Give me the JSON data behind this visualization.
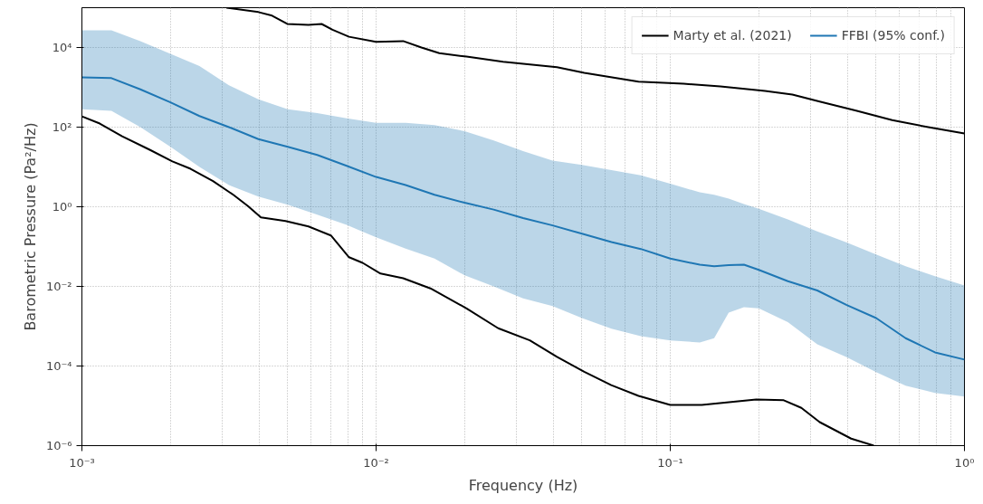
{
  "chart_data": {
    "type": "line",
    "xlabel": "Frequency (Hz)",
    "ylabel": "Barometric Pressure (Pa²/Hz)",
    "log": "xy",
    "grid": true,
    "legend": "top right",
    "line_style": "solid",
    "marker": "none",
    "xlim": [
      0.001,
      1
    ],
    "ylim": [
      1e-06,
      100000
    ],
    "xticks": [
      {
        "value": 0.001,
        "label": "10⁻³"
      },
      {
        "value": 0.01,
        "label": "10⁻²"
      },
      {
        "value": 0.1,
        "label": "10⁻¹"
      },
      {
        "value": 1,
        "label": "10⁰"
      }
    ],
    "yticks": [
      {
        "value": 1e-06,
        "label": "10⁻⁶"
      },
      {
        "value": 0.0001,
        "label": "10⁻⁴"
      },
      {
        "value": 0.01,
        "label": "10⁻²"
      },
      {
        "value": 1,
        "label": "10⁰"
      },
      {
        "value": 100,
        "label": "10²"
      },
      {
        "value": 10000,
        "label": "10⁴"
      }
    ],
    "series": [
      {
        "name": "Marty et al. (2021)",
        "color": "#000000",
        "x": [
          0.0031,
          0.00398,
          0.00443,
          0.00499,
          0.00589,
          0.00653,
          0.00711,
          0.00809,
          0.01,
          0.01236,
          0.01426,
          0.0164,
          0.0203,
          0.027,
          0.0412,
          0.051,
          0.078,
          0.111,
          0.148,
          0.21,
          0.26,
          0.322,
          0.428,
          0.568,
          0.753,
          1
        ],
        "values": [
          100000,
          77600,
          63000,
          39000,
          37000,
          39000,
          28000,
          18600,
          13800,
          14500,
          10000,
          7200,
          5900,
          4400,
          3200,
          2300,
          1380,
          1230,
          1050,
          810,
          660,
          440,
          260,
          150,
          100,
          69
        ]
      },
      {
        "color": "#000000",
        "x": [
          0.001,
          0.00115,
          0.00137,
          0.0017,
          0.00203,
          0.00234,
          0.00279,
          0.00327,
          0.00366,
          0.00406,
          0.00492,
          0.00589,
          0.00702,
          0.00809,
          0.009,
          0.01035,
          0.01236,
          0.0153,
          0.0203,
          0.026,
          0.0333,
          0.0412,
          0.051,
          0.063,
          0.078,
          0.1,
          0.128,
          0.196,
          0.243,
          0.279,
          0.322,
          0.412,
          0.492
        ],
        "values": [
          186,
          123,
          59,
          27,
          13.8,
          9.0,
          4.4,
          2.0,
          1.05,
          0.54,
          0.44,
          0.32,
          0.19,
          0.054,
          0.039,
          0.021,
          0.016,
          0.0089,
          0.0028,
          0.00089,
          0.00044,
          0.00017,
          7.2e-05,
          3.3e-05,
          1.78e-05,
          1.05e-05,
          1.05e-05,
          1.45e-05,
          1.38e-05,
          8.9e-06,
          3.9e-06,
          1.5e-06,
          1e-06
        ]
      },
      {
        "name": "FFBI (95% conf.)",
        "color": "#1f77b4",
        "x": [
          0.001,
          0.00126,
          0.00158,
          0.002,
          0.00251,
          0.00316,
          0.00398,
          0.00501,
          0.00631,
          0.00794,
          0.01,
          0.0126,
          0.0158,
          0.02,
          0.0251,
          0.0316,
          0.0398,
          0.0501,
          0.0631,
          0.0794,
          0.1,
          0.126,
          0.141,
          0.158,
          0.178,
          0.2,
          0.251,
          0.316,
          0.398,
          0.501,
          0.631,
          0.794,
          1
        ],
        "values": [
          1780,
          1700,
          890,
          420,
          190,
          100,
          50,
          32,
          20,
          10.7,
          5.6,
          3.5,
          2.0,
          1.26,
          0.85,
          0.52,
          0.34,
          0.21,
          0.13,
          0.087,
          0.05,
          0.035,
          0.032,
          0.034,
          0.035,
          0.026,
          0.0135,
          0.0079,
          0.0034,
          0.0016,
          0.0005,
          0.00022,
          0.000145
        ],
        "upper": [
          27000,
          27000,
          14500,
          6900,
          3400,
          1120,
          500,
          280,
          224,
          166,
          129,
          129,
          112,
          79,
          46,
          25,
          14.5,
          11.2,
          8.3,
          6.2,
          3.8,
          2.3,
          2.0,
          1.6,
          1.17,
          0.89,
          0.48,
          0.24,
          0.126,
          0.063,
          0.032,
          0.018,
          0.0105
        ],
        "lower": [
          280,
          257,
          100,
          32,
          10,
          3.5,
          1.8,
          1.12,
          0.63,
          0.35,
          0.17,
          0.089,
          0.05,
          0.019,
          0.01,
          0.005,
          0.0032,
          0.0016,
          0.00087,
          0.00056,
          0.00044,
          0.00039,
          0.0005,
          0.0022,
          0.003,
          0.0028,
          0.00126,
          0.00035,
          0.000166,
          7e-05,
          3.2e-05,
          2.1e-05,
          1.7e-05
        ]
      }
    ]
  }
}
